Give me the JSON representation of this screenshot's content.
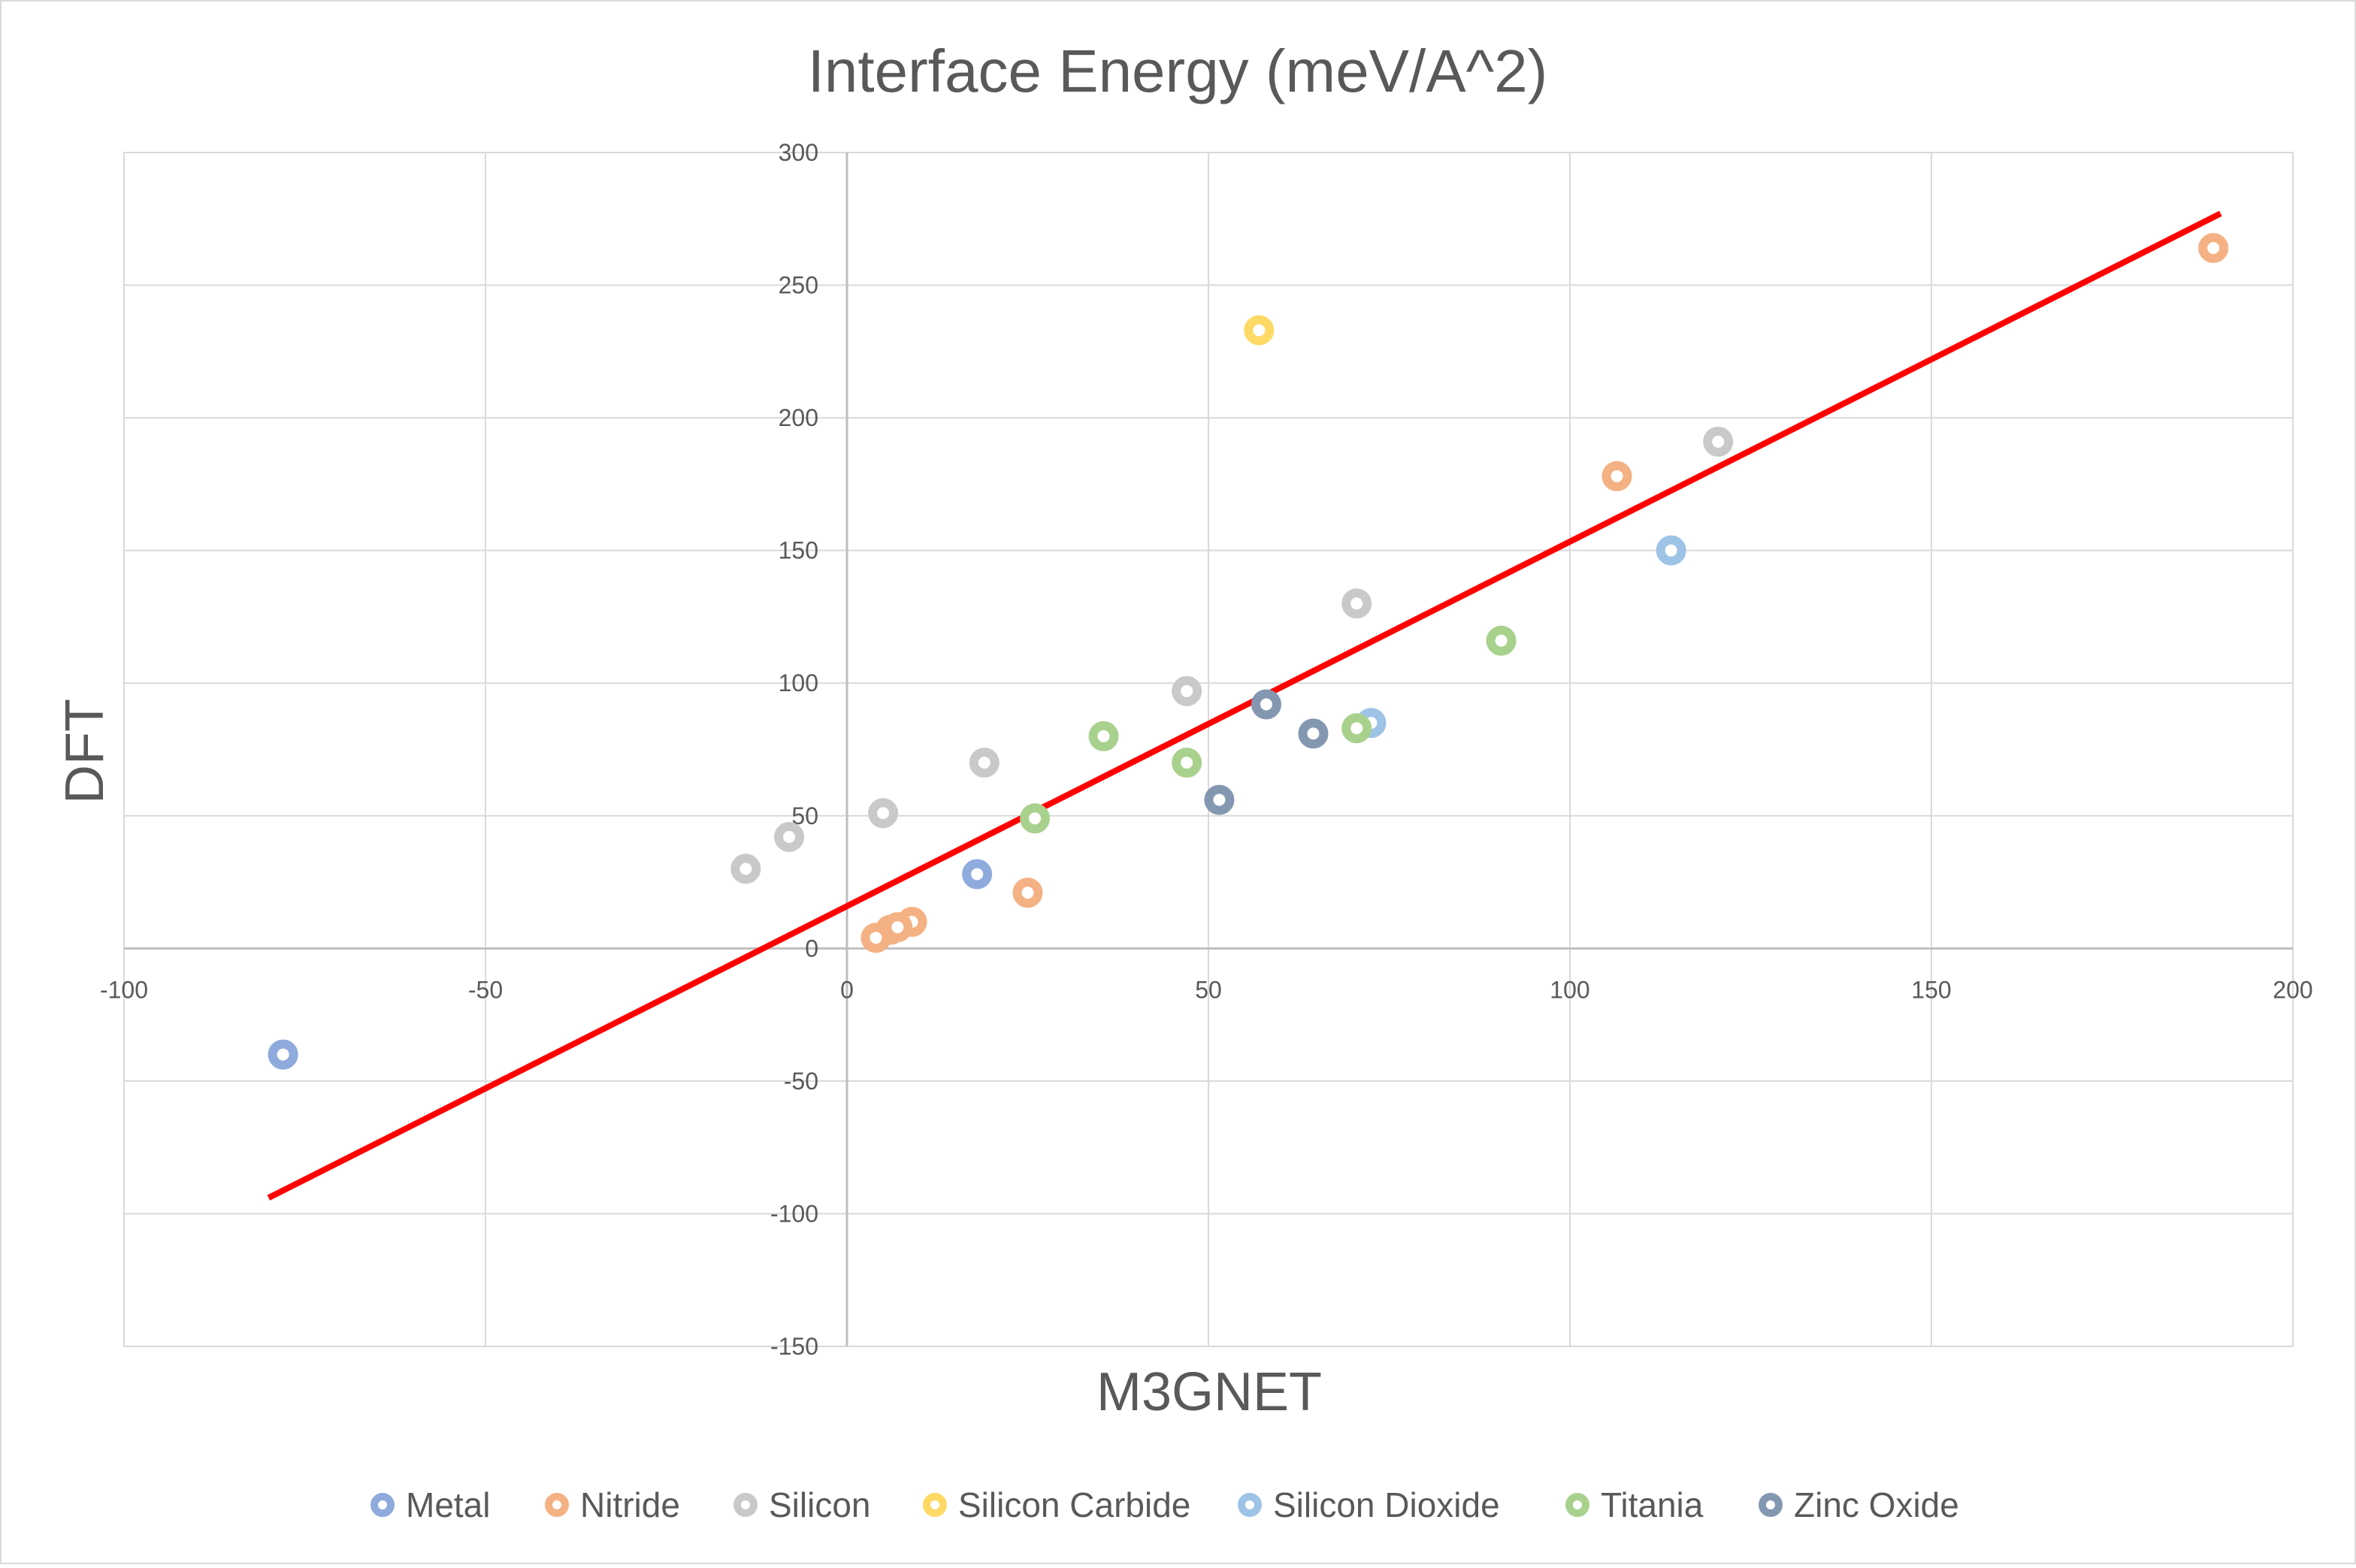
{
  "chart_data": {
    "type": "scatter",
    "title": "Interface Energy (meV/A^2)",
    "xlabel": "M3GNET",
    "ylabel": "DFT",
    "xlim": [
      -100,
      200
    ],
    "ylim": [
      -150,
      300
    ],
    "x_ticks": [
      "-100",
      "-50",
      "0",
      "50",
      "100",
      "150",
      "200"
    ],
    "y_ticks": [
      "300",
      "250",
      "200",
      "150",
      "100",
      "50",
      "0",
      "-50",
      "-100",
      "-150"
    ],
    "grid": true,
    "legend_position": "bottom",
    "series": [
      {
        "name": "Metal",
        "color": "#8faadc",
        "points": [
          [
            -78,
            -40
          ],
          [
            18,
            28
          ]
        ]
      },
      {
        "name": "Nitride",
        "color": "#f4b183",
        "points": [
          [
            189,
            264
          ],
          [
            106.5,
            178
          ],
          [
            25,
            21
          ],
          [
            9,
            10
          ],
          [
            6,
            7
          ],
          [
            7,
            8
          ],
          [
            4,
            4
          ]
        ]
      },
      {
        "name": "Silicon",
        "color": "#c9c9c9",
        "points": [
          [
            120.5,
            191
          ],
          [
            70.5,
            130
          ],
          [
            47,
            97
          ],
          [
            19,
            70
          ],
          [
            5,
            51
          ],
          [
            -8,
            42
          ],
          [
            -14,
            30
          ]
        ]
      },
      {
        "name": "Silicon Carbide",
        "color": "#ffd966",
        "points": [
          [
            57,
            233
          ]
        ]
      },
      {
        "name": "Silicon Dioxide",
        "color": "#9dc3e6",
        "points": [
          [
            114,
            150
          ],
          [
            72.5,
            85
          ]
        ]
      },
      {
        "name": "Titania",
        "color": "#a9d18e",
        "points": [
          [
            90.5,
            116
          ],
          [
            70.5,
            83
          ],
          [
            35.5,
            80
          ],
          [
            47,
            70
          ],
          [
            26,
            49
          ]
        ]
      },
      {
        "name": "Zinc Oxide",
        "color": "#8497b0",
        "points": [
          [
            58,
            92
          ],
          [
            64.5,
            81
          ],
          [
            51.5,
            56
          ]
        ]
      }
    ],
    "trendline": {
      "color": "#ff0000",
      "points": [
        [
          -80,
          -94
        ],
        [
          190,
          277
        ]
      ]
    }
  }
}
